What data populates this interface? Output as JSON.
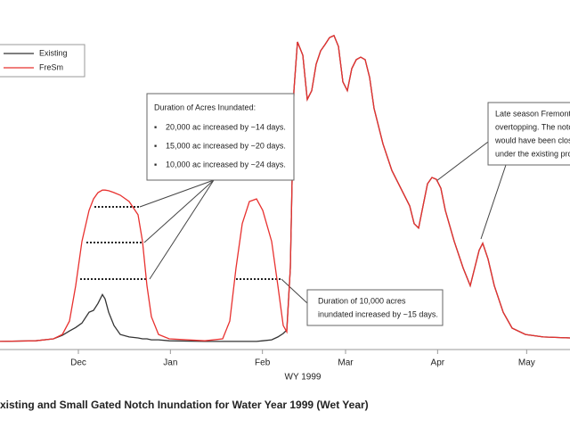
{
  "chart_data": {
    "type": "line",
    "xlabel": "WY 1999",
    "caption": "xisting and Small Gated Notch Inundation for Water Year 1999 (Wet Year)",
    "xlim": [
      -26.4,
      165.6
    ],
    "ylim": [
      0,
      100
    ],
    "xticks": [
      {
        "value": 0,
        "label": "Dec"
      },
      {
        "value": 31,
        "label": "Jan"
      },
      {
        "value": 62,
        "label": "Feb"
      },
      {
        "value": 90,
        "label": "Mar"
      },
      {
        "value": 121,
        "label": "Apr"
      },
      {
        "value": 151,
        "label": "May"
      }
    ],
    "grid": false,
    "legend": "upper left",
    "x": [
      -26.4,
      -14.4,
      -8.4,
      -5.4,
      -3,
      -0.9,
      1.2,
      3.6,
      5.1,
      6.6,
      8.1,
      9,
      10.2,
      12,
      14.1,
      17.1,
      20.1,
      21.6,
      23.1,
      24.6,
      27,
      30.6,
      42.6,
      48.6,
      51,
      53.1,
      55.2,
      57.6,
      60,
      62.1,
      65.1,
      67.2,
      69,
      70.2,
      71.4,
      72.6,
      73.8,
      75.6,
      77.1,
      78.6,
      80.1,
      81.6,
      83.1,
      84.6,
      86.1,
      87.6,
      89.1,
      90.6,
      92.1,
      93.6,
      95.1,
      96.6,
      98.1,
      99.6,
      102.6,
      105.6,
      108.6,
      111.6,
      113.1,
      114.6,
      116.1,
      117.6,
      119.1,
      120.6,
      122.1,
      123.6,
      126.6,
      129.6,
      132,
      133.5,
      135,
      136.2,
      138,
      140.1,
      143.1,
      146.1,
      150.6,
      156.6,
      165.6
    ],
    "series": [
      {
        "name": "Existing",
        "color": "#333333",
        "values": [
          0.6,
          0.8,
          1.4,
          2.5,
          3.9,
          5,
          6.4,
          9.8,
          10.4,
          12.6,
          15.4,
          14,
          9.8,
          5.6,
          2.8,
          2,
          1.7,
          1.4,
          1.4,
          1.1,
          1.1,
          0.8,
          0.6,
          0.6,
          0.6,
          0.6,
          0.6,
          0.6,
          0.6,
          0.8,
          1.1,
          2,
          3.1,
          4.2,
          23.8,
          79.8,
          95.2,
          91,
          77,
          79.8,
          88.2,
          92.4,
          94.4,
          96.6,
          97.2,
          93.8,
          82.6,
          79.8,
          86.8,
          89.6,
          90.4,
          89.6,
          84,
          74.2,
          63,
          54.6,
          49,
          43.4,
          37.8,
          36.4,
          43.4,
          50.4,
          52.4,
          51.8,
          49,
          42,
          32.2,
          23.8,
          18.2,
          23.8,
          29.4,
          31.6,
          26.6,
          18.2,
          9.8,
          4.8,
          2.8,
          2,
          1.7
        ]
      },
      {
        "name": "FreSm",
        "color": "#e8312f",
        "values": [
          0.6,
          0.8,
          1.4,
          2.8,
          7,
          18.2,
          32.2,
          42,
          45.6,
          47.6,
          48.4,
          48.4,
          48.2,
          47.6,
          46.8,
          44.8,
          40.6,
          32.2,
          18.2,
          8.4,
          2.8,
          1.4,
          0.8,
          1.4,
          7,
          23.8,
          37.8,
          44.8,
          45.6,
          42,
          32.2,
          18.2,
          5.6,
          3.6,
          23.8,
          79.8,
          95.2,
          91,
          77,
          79.8,
          88.2,
          92.4,
          94.4,
          96.6,
          97.2,
          93.8,
          82.6,
          79.8,
          86.8,
          89.6,
          90.4,
          89.6,
          84,
          74.2,
          63,
          54.6,
          49,
          43.4,
          37.8,
          36.4,
          43.4,
          50.4,
          52.4,
          51.8,
          49,
          42,
          32.2,
          23.8,
          18.2,
          23.8,
          29.4,
          31.6,
          26.6,
          18.2,
          9.8,
          4.8,
          2.8,
          2,
          1.7
        ]
      }
    ],
    "annotations": {
      "acres_box": {
        "title": "Duration of Acres Inundated:",
        "items": [
          "20,000 ac increased by ~14 days.",
          "15,000 ac increased by ~20 days.",
          "10,000 ac increased by ~24 days."
        ]
      },
      "feb_box": [
        "Duration of 10,000 acres",
        "inundated increased by ~15 days."
      ],
      "late_box": [
        "Late season Fremont W",
        "overtopping. The notc",
        "would have been clos",
        "under the existing pro"
      ]
    }
  }
}
